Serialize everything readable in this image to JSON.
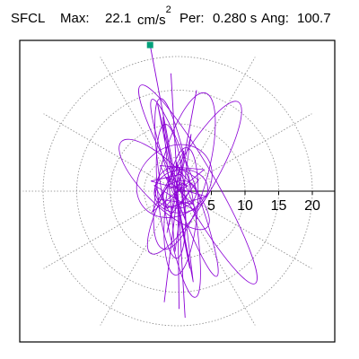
{
  "header": {
    "station": "SFCL",
    "max_label": "Max:",
    "max_value": "22.1",
    "max_unit": "cm/s",
    "max_unit_exp": "2",
    "per_label": "Per:",
    "per_value": "0.280 s",
    "ang_label": "Ang:",
    "ang_value": "100.7"
  },
  "chart_data": {
    "type": "scatter",
    "title": "",
    "radial_ticks": [
      5,
      10,
      15,
      20
    ],
    "rlim": [
      0,
      22.1
    ],
    "grid": "dotted polar rings and spokes every 30 degrees",
    "series_color": "#8b00d6",
    "peak_marker": {
      "angle_deg": 100.7,
      "radius": 22.1,
      "color": "#00a07a"
    },
    "trace_points": [
      {
        "x": -0.5,
        "y": -0.3
      },
      {
        "x": 1.5,
        "y": 0.8
      },
      {
        "x": -1.8,
        "y": 2.1
      },
      {
        "x": 2.2,
        "y": -1.9
      },
      {
        "x": -2.9,
        "y": -1.2
      },
      {
        "x": 0.6,
        "y": 3.4
      },
      {
        "x": 3.1,
        "y": 1.7
      },
      {
        "x": -1.0,
        "y": -3.5
      },
      {
        "x": -3.5,
        "y": 0.9
      },
      {
        "x": 2.7,
        "y": -3.0
      },
      {
        "x": -0.2,
        "y": 4.3
      },
      {
        "x": 1.2,
        "y": -4.2
      },
      {
        "x": -2.6,
        "y": 3.8
      },
      {
        "x": 3.9,
        "y": 3.2
      },
      {
        "x": -3.8,
        "y": -3.1
      },
      {
        "x": 0.9,
        "y": 6.0
      },
      {
        "x": -1.6,
        "y": -6.2
      },
      {
        "x": 2.0,
        "y": 8.5
      },
      {
        "x": -0.4,
        "y": -9.0
      },
      {
        "x": -2.2,
        "y": 11.0
      },
      {
        "x": 1.8,
        "y": -11.5
      },
      {
        "x": -3.0,
        "y": 13.0
      },
      {
        "x": -1.5,
        "y": 6.5
      },
      {
        "x": 2.3,
        "y": -13.5
      },
      {
        "x": 0.4,
        "y": 2.5
      },
      {
        "x": -4.0,
        "y": 1.5
      },
      {
        "x": 4.3,
        "y": -0.8
      },
      {
        "x": -2.0,
        "y": -2.6
      },
      {
        "x": 1.0,
        "y": 1.2
      },
      {
        "x": -1.2,
        "y": 0.4
      }
    ],
    "ellipses": [
      {
        "cx": 3.0,
        "cy": 1.0,
        "rx": 17.0,
        "ry": 2.6,
        "angle_deg": 120
      },
      {
        "cx": 0.0,
        "cy": -1.0,
        "rx": 15.0,
        "ry": 2.2,
        "angle_deg": 100
      },
      {
        "cx": 1.0,
        "cy": 3.0,
        "rx": 12.0,
        "ry": 3.5,
        "angle_deg": 75
      },
      {
        "cx": -1.0,
        "cy": 0.0,
        "rx": 10.0,
        "ry": 2.0,
        "angle_deg": 95
      },
      {
        "cx": 2.5,
        "cy": 2.0,
        "rx": 13.0,
        "ry": 3.0,
        "angle_deg": 60
      },
      {
        "cx": -2.0,
        "cy": 1.0,
        "rx": 9.0,
        "ry": 3.0,
        "angle_deg": 135
      },
      {
        "cx": 0.5,
        "cy": -3.0,
        "rx": 9.5,
        "ry": 2.4,
        "angle_deg": 85
      },
      {
        "cx": 1.0,
        "cy": 0.5,
        "rx": 14.0,
        "ry": 1.6,
        "angle_deg": 110
      },
      {
        "cx": -0.5,
        "cy": 1.5,
        "rx": 6.0,
        "ry": 5.0,
        "angle_deg": 40
      },
      {
        "cx": 0.5,
        "cy": 0.0,
        "rx": 4.0,
        "ry": 3.2,
        "angle_deg": 10
      },
      {
        "cx": -0.8,
        "cy": 0.6,
        "rx": 3.0,
        "ry": 2.5,
        "angle_deg": 70
      },
      {
        "cx": 0.3,
        "cy": -0.5,
        "rx": 2.5,
        "ry": 2.0,
        "angle_deg": 20
      }
    ],
    "spikes": [
      {
        "from": [
          0.0,
          0.0
        ],
        "to": [
          -4.1,
          21.7
        ]
      },
      {
        "from": [
          0.0,
          0.0
        ],
        "to": [
          -1.0,
          17.5
        ]
      },
      {
        "from": [
          0.0,
          0.0
        ],
        "to": [
          1.1,
          -18.8
        ]
      },
      {
        "from": [
          0.0,
          0.0
        ],
        "to": [
          0.2,
          -17.5
        ]
      },
      {
        "from": [
          0.0,
          0.0
        ],
        "to": [
          -2.0,
          -16.5
        ]
      },
      {
        "from": [
          0.0,
          0.0
        ],
        "to": [
          2.8,
          15.0
        ]
      }
    ]
  }
}
